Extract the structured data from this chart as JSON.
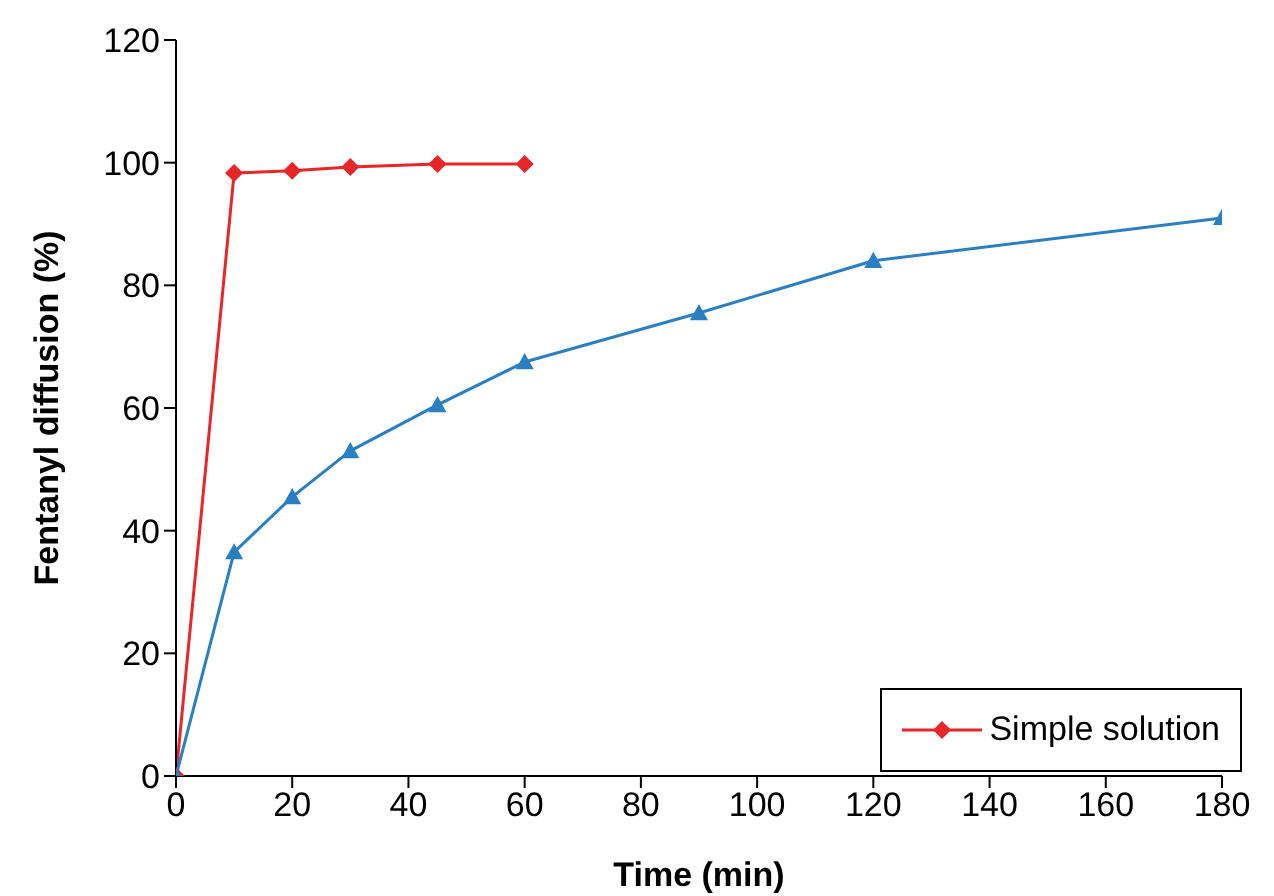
{
  "chart_data": {
    "type": "line",
    "xlabel": "Time (min)",
    "ylabel": "Fentanyl diffusion (%)",
    "xlim": [
      0,
      180
    ],
    "xticks": [
      0,
      20,
      40,
      60,
      80,
      100,
      120,
      140,
      160,
      180
    ],
    "ylim": [
      0,
      120
    ],
    "yticks": [
      0,
      20,
      40,
      60,
      80,
      100,
      120
    ],
    "grid": false,
    "legend": "bottom right",
    "series": [
      {
        "name": "Simple solution",
        "color": "#e8262a",
        "marker": "diamond",
        "x": [
          0,
          10,
          20,
          30,
          45,
          60
        ],
        "values": [
          0,
          98.3,
          98.7,
          99.3,
          99.8,
          99.8
        ]
      },
      {
        "color": "#2a7fc1",
        "marker": "triangle",
        "x": [
          0,
          10,
          20,
          30,
          45,
          60,
          90,
          120,
          180
        ],
        "values": [
          0,
          36.5,
          45.5,
          53,
          60.5,
          67.5,
          75.5,
          84,
          91
        ]
      }
    ]
  }
}
